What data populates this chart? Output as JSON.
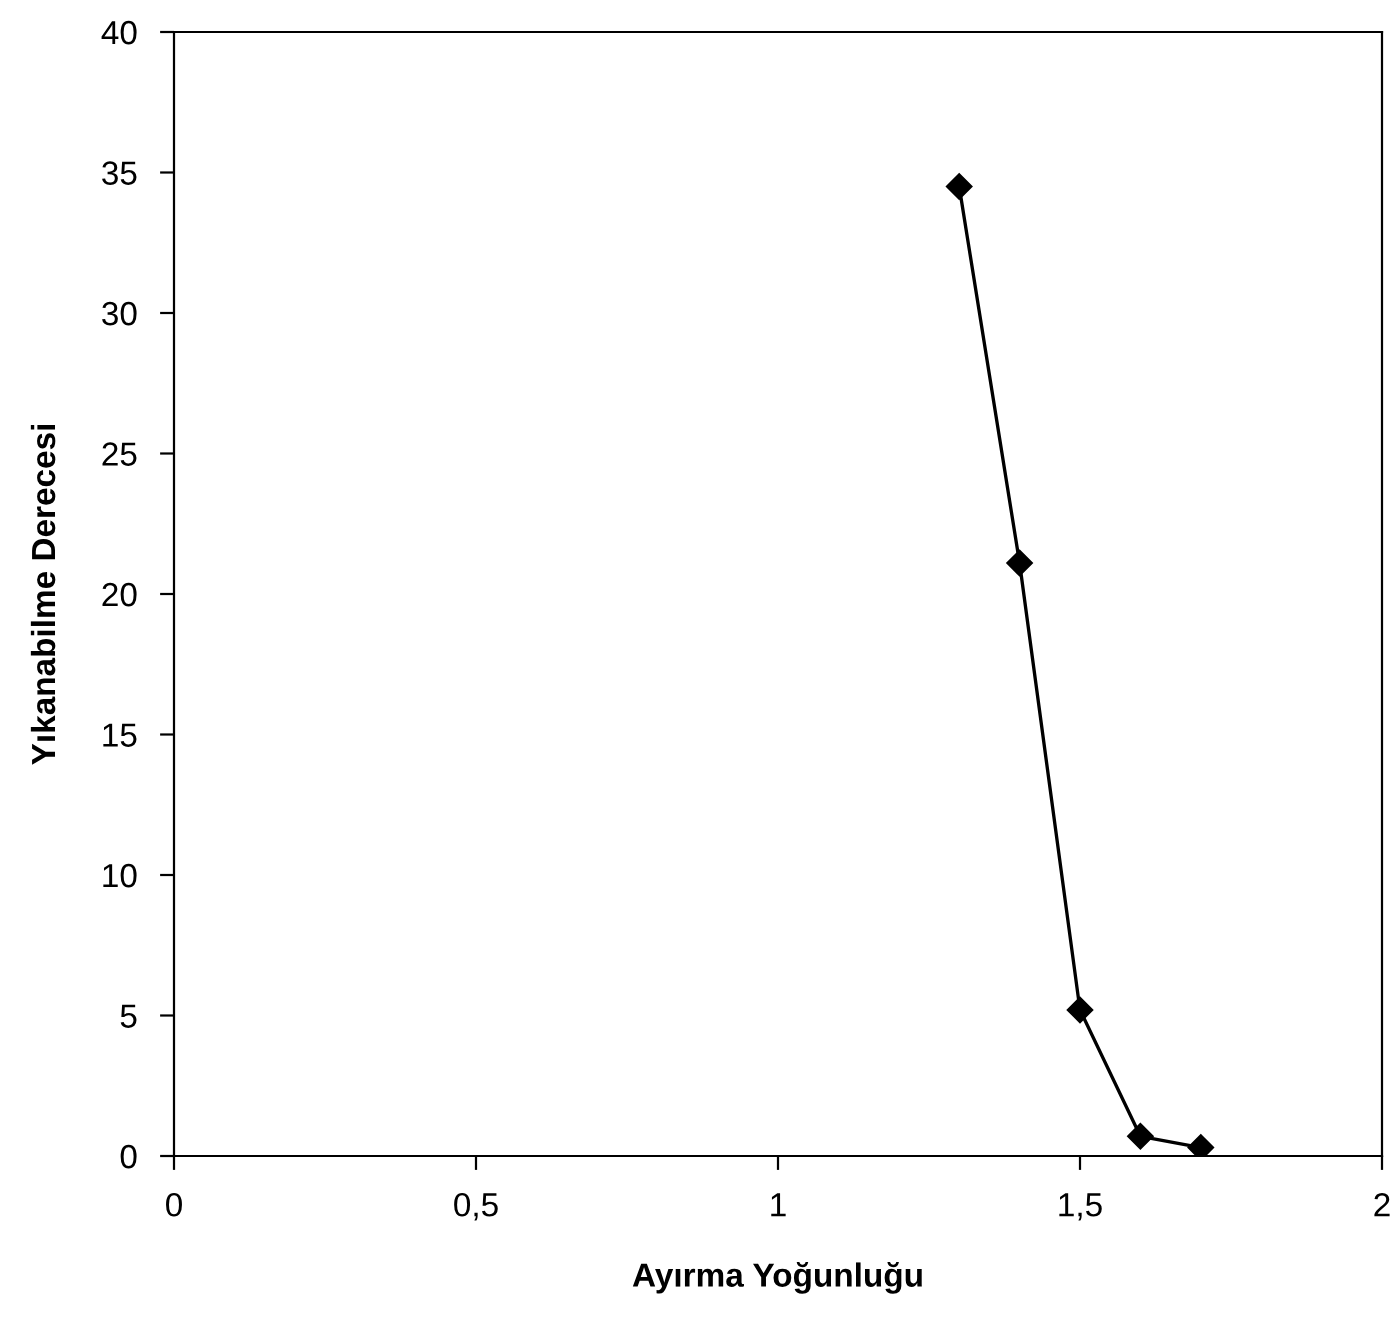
{
  "chart_data": {
    "type": "line",
    "xlabel": "Ayırma Yoğunluğu",
    "ylabel": "Yıkanabilme Derecesi",
    "x": [
      1.3,
      1.4,
      1.5,
      1.6,
      1.7
    ],
    "series": [
      {
        "color": "#000000",
        "values": [
          34.5,
          21.1,
          5.2,
          0.7,
          0.3
        ]
      }
    ],
    "xlim": [
      0,
      2
    ],
    "xticks": [
      0,
      {
        "value": 0.5,
        "label": "0,5"
      },
      1,
      {
        "value": 1.5,
        "label": "1,5"
      },
      2
    ],
    "ylim": [
      0,
      40
    ],
    "yticks": [
      0,
      5,
      10,
      15,
      20,
      25,
      30,
      35,
      40
    ],
    "marker": "diamond",
    "line_style": "solid",
    "grid": false
  }
}
